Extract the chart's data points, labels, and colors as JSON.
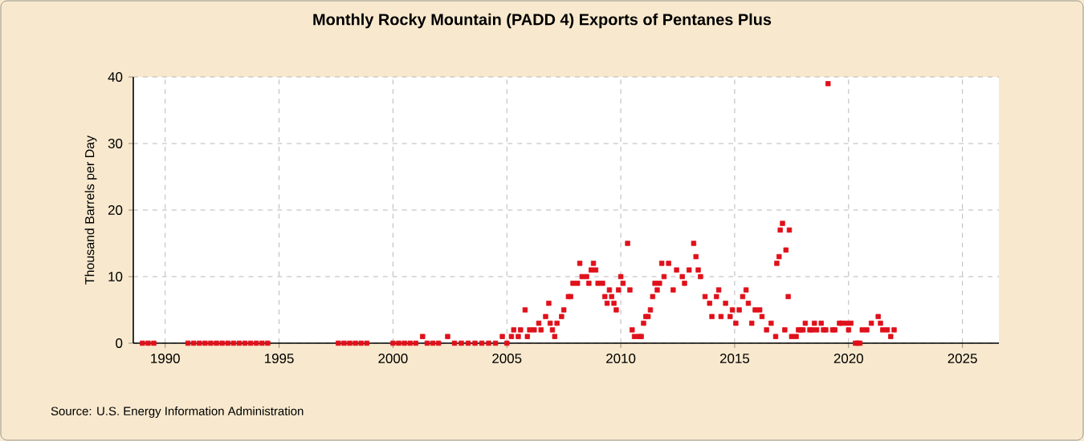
{
  "chart_data": {
    "type": "scatter",
    "title": "Monthly Rocky Mountain (PADD 4) Exports of Pentanes Plus",
    "ylabel": "Thousand Barrels per Day",
    "annotations": [
      "Source: U.S. Energy Information Administration"
    ],
    "xlim": [
      1988.6,
      2026.6
    ],
    "xticks": [
      1990,
      1995,
      2000,
      2005,
      2010,
      2015,
      2020,
      2025
    ],
    "ylim": [
      0,
      40
    ],
    "yticks": [
      0,
      10,
      20,
      30,
      40
    ],
    "grid": true,
    "marker": "square",
    "series": [
      {
        "color": "#e0101a",
        "x": [
          1989.0,
          1989.25,
          1989.5,
          1991.0,
          1991.25,
          1991.5,
          1991.75,
          1992.0,
          1992.25,
          1992.5,
          1992.75,
          1993.0,
          1993.25,
          1993.5,
          1993.75,
          1994.0,
          1994.25,
          1994.5,
          1997.6,
          1997.85,
          1998.1,
          1998.35,
          1998.6,
          1998.85,
          2000.0,
          2000.25,
          2000.5,
          2000.75,
          2001.0,
          2001.3,
          2001.5,
          2001.75,
          2002.0,
          2002.4,
          2002.7,
          2003.0,
          2003.3,
          2003.6,
          2003.9,
          2004.2,
          2004.5,
          2004.8,
          2005.0,
          2005.2,
          2005.3,
          2005.5,
          2005.6,
          2005.8,
          2005.9,
          2006.0,
          2006.2,
          2006.4,
          2006.5,
          2006.7,
          2006.84,
          2006.9,
          2007.0,
          2007.1,
          2007.2,
          2007.4,
          2007.5,
          2007.7,
          2007.8,
          2007.9,
          2008.1,
          2008.2,
          2008.3,
          2008.5,
          2008.6,
          2008.7,
          2008.8,
          2008.9,
          2009.0,
          2009.2,
          2009.3,
          2009.4,
          2009.5,
          2009.6,
          2009.7,
          2009.8,
          2009.9,
          2010.0,
          2010.1,
          2010.3,
          2010.4,
          2010.5,
          2010.6,
          2010.8,
          2010.9,
          2011.0,
          2011.1,
          2011.2,
          2011.3,
          2011.4,
          2011.5,
          2011.6,
          2011.7,
          2011.8,
          2011.9,
          2012.1,
          2012.3,
          2012.45,
          2012.7,
          2012.8,
          2013.0,
          2013.2,
          2013.3,
          2013.4,
          2013.5,
          2013.7,
          2013.9,
          2014.0,
          2014.2,
          2014.3,
          2014.4,
          2014.6,
          2014.8,
          2014.9,
          2015.05,
          2015.2,
          2015.35,
          2015.5,
          2015.6,
          2015.75,
          2015.9,
          2016.1,
          2016.2,
          2016.4,
          2016.6,
          2016.8,
          2016.85,
          2016.95,
          2017.0,
          2017.1,
          2017.2,
          2017.25,
          2017.35,
          2017.4,
          2017.5,
          2017.7,
          2017.8,
          2017.9,
          2018.0,
          2018.1,
          2018.3,
          2018.4,
          2018.5,
          2018.6,
          2018.8,
          2018.9,
          2019.0,
          2019.1,
          2019.3,
          2019.4,
          2019.6,
          2019.7,
          2019.9,
          2020.0,
          2020.1,
          2020.3,
          2020.4,
          2020.5,
          2020.6,
          2020.8,
          2021.0,
          2021.3,
          2021.4,
          2021.5,
          2021.7,
          2021.85,
          2022.0
        ],
        "values": [
          0,
          0,
          0,
          0,
          0,
          0,
          0,
          0,
          0,
          0,
          0,
          0,
          0,
          0,
          0,
          0,
          0,
          0,
          0,
          0,
          0,
          0,
          0,
          0,
          0,
          0,
          0,
          0,
          0,
          1,
          0,
          0,
          0,
          1,
          0,
          0,
          0,
          0,
          0,
          0,
          0,
          1,
          0,
          1,
          2,
          1,
          2,
          5,
          1,
          2,
          2,
          3,
          2,
          4,
          6,
          3,
          2,
          1,
          3,
          4,
          5,
          7,
          7,
          9,
          9,
          12,
          10,
          10,
          9,
          11,
          12,
          11,
          9,
          9,
          7,
          6,
          8,
          7,
          6,
          5,
          8,
          10,
          9,
          15,
          8,
          2,
          1,
          1,
          1,
          3,
          4,
          4,
          5,
          7,
          9,
          8,
          9,
          12,
          10,
          12,
          8,
          11,
          10,
          9,
          11,
          15,
          13,
          11,
          10,
          7,
          6,
          4,
          7,
          8,
          4,
          6,
          4,
          5,
          3,
          5,
          7,
          8,
          6,
          3,
          5,
          5,
          4,
          2,
          3,
          1,
          12,
          13,
          17,
          18,
          2,
          14,
          7,
          17,
          1,
          1,
          2,
          2,
          2,
          3,
          2,
          2,
          3,
          2,
          3,
          2,
          2,
          39,
          2,
          2,
          3,
          3,
          3,
          2,
          3,
          0,
          0,
          0,
          2,
          2,
          3,
          4,
          3,
          2,
          2,
          1,
          2
        ]
      }
    ]
  }
}
